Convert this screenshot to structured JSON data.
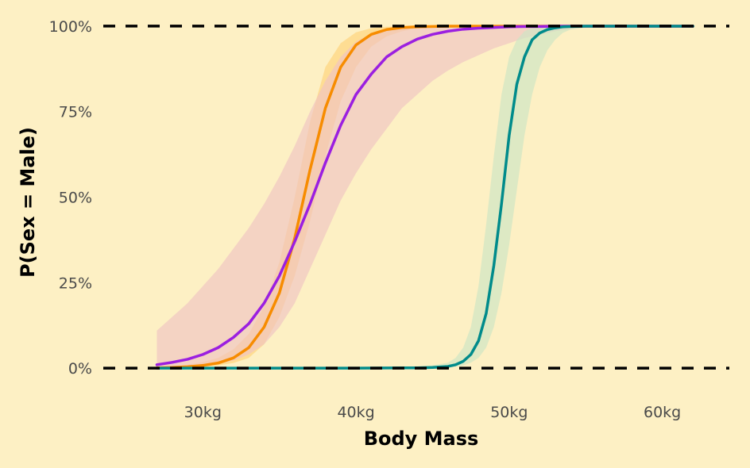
{
  "chart_data": {
    "type": "line",
    "title": "",
    "xlabel": "Body Mass",
    "ylabel": "P(Sex = Male)",
    "xlim": [
      23.5,
      65
    ],
    "ylim": [
      -0.06,
      1.03
    ],
    "x_ticks": [
      30,
      40,
      50,
      60
    ],
    "x_tick_labels": [
      "30kg",
      "40kg",
      "50kg",
      "60kg"
    ],
    "y_ticks": [
      0,
      0.25,
      0.5,
      0.75,
      1
    ],
    "y_tick_labels": [
      "0%",
      "25%",
      "50%",
      "75%",
      "100%"
    ],
    "reference_lines": [
      0,
      1
    ],
    "grid": false,
    "legend": "none",
    "background": "#fdf0c4",
    "series": [
      {
        "color": "#f78c00",
        "band_color": "#ffd37a",
        "x": [
          27,
          28,
          29,
          30,
          31,
          32,
          33,
          34,
          35,
          36,
          37,
          38,
          39,
          40,
          41,
          42,
          43,
          44,
          45,
          46,
          47,
          48,
          49,
          50,
          52,
          54,
          56,
          58,
          60,
          62
        ],
        "y": [
          0.001,
          0.002,
          0.004,
          0.008,
          0.015,
          0.03,
          0.06,
          0.12,
          0.22,
          0.38,
          0.58,
          0.76,
          0.88,
          0.945,
          0.976,
          0.99,
          0.996,
          0.998,
          0.999,
          1,
          1,
          1,
          1,
          1,
          1,
          1,
          1,
          1,
          1,
          1
        ],
        "lower": [
          0,
          0.001,
          0.002,
          0.004,
          0.008,
          0.015,
          0.03,
          0.07,
          0.15,
          0.27,
          0.43,
          0.62,
          0.78,
          0.88,
          0.94,
          0.97,
          0.985,
          0.994,
          0.998,
          0.999,
          1,
          1,
          1,
          1,
          1,
          1,
          1,
          1,
          1,
          1
        ],
        "upper": [
          0.003,
          0.006,
          0.01,
          0.018,
          0.03,
          0.055,
          0.1,
          0.18,
          0.31,
          0.5,
          0.72,
          0.88,
          0.95,
          0.982,
          0.994,
          0.998,
          0.999,
          1,
          1,
          1,
          1,
          1,
          1,
          1,
          1,
          1,
          1,
          1,
          1,
          1
        ]
      },
      {
        "color": "#9b1fe0",
        "band_color": "#efc3c3",
        "x": [
          27,
          28,
          29,
          30,
          31,
          32,
          33,
          34,
          35,
          36,
          37,
          38,
          39,
          40,
          41,
          42,
          43,
          44,
          45,
          46,
          47,
          48,
          49,
          50,
          51,
          52,
          53,
          54,
          55,
          56,
          58,
          60,
          62
        ],
        "y": [
          0.01,
          0.017,
          0.026,
          0.04,
          0.06,
          0.09,
          0.13,
          0.19,
          0.27,
          0.37,
          0.48,
          0.6,
          0.71,
          0.8,
          0.86,
          0.91,
          0.94,
          0.962,
          0.976,
          0.985,
          0.991,
          0.994,
          0.996,
          0.998,
          0.999,
          0.999,
          1,
          1,
          1,
          1,
          1,
          1,
          1
        ],
        "lower": [
          0,
          0.001,
          0.003,
          0.006,
          0.012,
          0.022,
          0.04,
          0.07,
          0.12,
          0.19,
          0.29,
          0.39,
          0.49,
          0.57,
          0.64,
          0.7,
          0.76,
          0.8,
          0.84,
          0.87,
          0.895,
          0.915,
          0.935,
          0.95,
          0.965,
          0.975,
          0.985,
          0.992,
          0.996,
          0.998,
          1,
          1,
          1
        ],
        "upper": [
          0.11,
          0.15,
          0.19,
          0.24,
          0.29,
          0.35,
          0.41,
          0.48,
          0.56,
          0.65,
          0.75,
          0.84,
          0.91,
          0.955,
          0.978,
          0.99,
          0.995,
          0.998,
          1,
          1,
          1,
          1,
          1,
          1,
          1,
          1,
          1,
          1,
          1,
          1,
          1,
          1,
          1
        ]
      },
      {
        "color": "#008b8b",
        "band_color": "#cde5c4",
        "x": [
          27,
          30,
          35,
          40,
          44,
          45,
          46,
          46.5,
          47,
          47.5,
          48,
          48.5,
          49,
          49.5,
          50,
          50.5,
          51,
          51.5,
          52,
          52.5,
          53,
          53.5,
          54,
          55,
          56,
          58,
          60,
          62
        ],
        "y": [
          0,
          0,
          0,
          0,
          0.001,
          0.002,
          0.005,
          0.01,
          0.02,
          0.04,
          0.08,
          0.16,
          0.3,
          0.48,
          0.68,
          0.83,
          0.91,
          0.96,
          0.98,
          0.99,
          0.995,
          0.998,
          0.999,
          1,
          1,
          1,
          1,
          1
        ],
        "lower": [
          0,
          0,
          0,
          0,
          0,
          0.001,
          0.002,
          0.004,
          0.008,
          0.016,
          0.03,
          0.06,
          0.12,
          0.22,
          0.36,
          0.52,
          0.68,
          0.8,
          0.88,
          0.93,
          0.96,
          0.98,
          0.99,
          0.996,
          0.999,
          1,
          1,
          1
        ],
        "upper": [
          0,
          0,
          0,
          0.001,
          0.004,
          0.008,
          0.016,
          0.03,
          0.06,
          0.12,
          0.24,
          0.42,
          0.62,
          0.8,
          0.91,
          0.96,
          0.985,
          0.995,
          0.998,
          1,
          1,
          1,
          1,
          1,
          1,
          1,
          1,
          1
        ]
      }
    ]
  }
}
